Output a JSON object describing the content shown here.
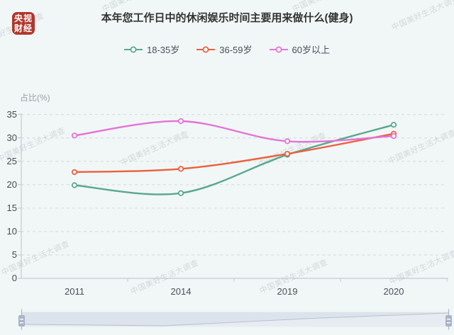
{
  "background_color": "#f1f7f6",
  "watermark_text": "中国美好生活大调查",
  "logo": {
    "line1": "央视",
    "line2": "财经",
    "color": "#b0372e"
  },
  "title": "本年您工作日中的休闲娱乐时间主要用来做什么(健身)",
  "chart_data": {
    "type": "line",
    "title": "本年您工作日中的休闲娱乐时间主要用来做什么(健身)",
    "categories": [
      "2011",
      "2014",
      "2019",
      "2020"
    ],
    "series": [
      {
        "name": "18-35岁",
        "color": "#58a88f",
        "values": [
          19.9,
          18.2,
          26.4,
          32.8
        ]
      },
      {
        "name": "36-59岁",
        "color": "#ed5f3d",
        "values": [
          22.7,
          23.4,
          26.6,
          30.9
        ]
      },
      {
        "name": "60岁以上",
        "color": "#e373d7",
        "values": [
          30.5,
          33.6,
          29.3,
          30.4
        ]
      }
    ],
    "xlabel": "",
    "ylabel": "占比(%)",
    "ylim": [
      0,
      35
    ],
    "ytick_step": 5,
    "yticks": [
      0,
      5,
      10,
      15,
      20,
      25,
      30,
      35
    ],
    "grid": "horizontal-dashed",
    "legend_position": "top-center",
    "smooth": true,
    "point_style": "hollow-circle",
    "axis_color": "#c4cbd1",
    "gridline_color": "#d3dadf",
    "data_zoom_slider": {
      "present": true,
      "range": "full",
      "track_color": "#dce3ec",
      "shadow_fill_color": "#e7ecf2",
      "shadow_line_color": "#b7c1ce",
      "handle_color": "#a9b4c6"
    }
  }
}
